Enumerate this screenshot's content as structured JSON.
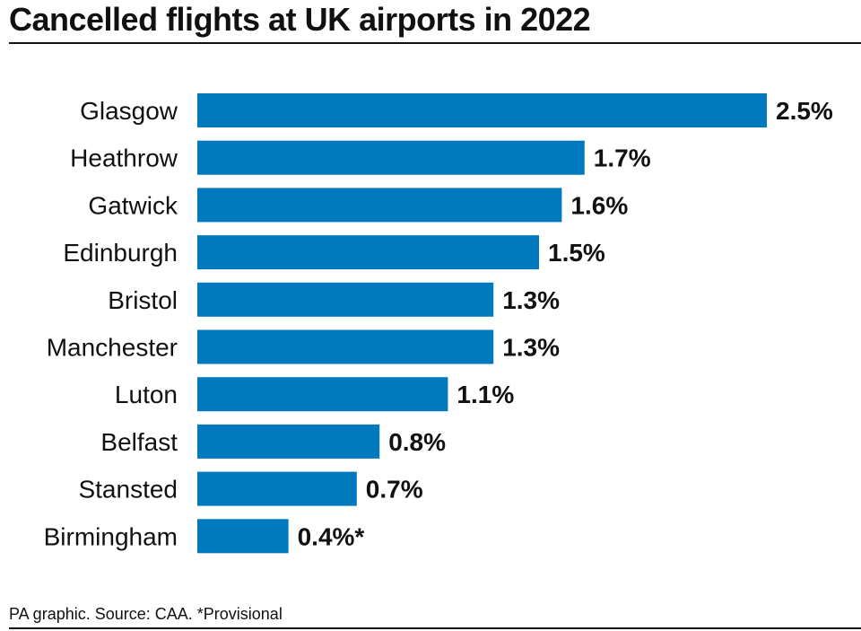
{
  "header": {
    "title": "Cancelled flights at UK airports in 2022"
  },
  "footer": {
    "source": "PA graphic. Source: CAA. *Provisional"
  },
  "colors": {
    "bar": "#0079bf",
    "text": "#111111"
  },
  "chart_data": {
    "type": "bar",
    "orientation": "horizontal",
    "title": "Cancelled flights at UK airports in 2022",
    "xlabel": "",
    "ylabel": "",
    "unit": "%",
    "xlim": [
      0,
      2.5
    ],
    "grid": false,
    "categories": [
      "Glasgow",
      "Heathrow",
      "Gatwick",
      "Edinburgh",
      "Bristol",
      "Manchester",
      "Luton",
      "Belfast",
      "Stansted",
      "Birmingham"
    ],
    "values": [
      2.5,
      1.7,
      1.6,
      1.5,
      1.3,
      1.3,
      1.1,
      0.8,
      0.7,
      0.4
    ],
    "data_labels": [
      "2.5%",
      "1.7%",
      "1.6%",
      "1.5%",
      "1.3%",
      "1.3%",
      "1.1%",
      "0.8%",
      "0.7%",
      "0.4%*"
    ]
  }
}
